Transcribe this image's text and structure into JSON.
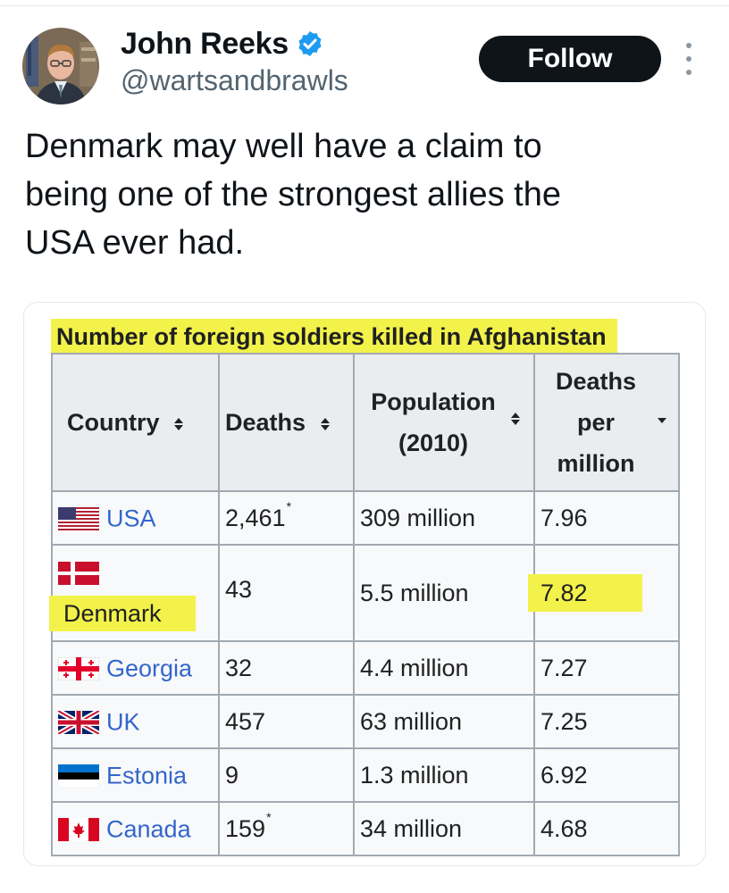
{
  "tweet": {
    "author": {
      "display_name": "John Reeks",
      "handle": "@wartsandbrawls",
      "verified": true
    },
    "follow_label": "Follow",
    "text": "Denmark may well have a claim to\nbeing one of the strongest allies the\nUSA ever had."
  },
  "table": {
    "caption": "Number of foreign soldiers killed in Afghanistan",
    "headers": {
      "country": "Country",
      "deaths": "Deaths",
      "population_line1": "Population",
      "population_line2": "(2010)",
      "dpm_line1": "Deaths",
      "dpm_line2": "per",
      "dpm_line3": "million"
    },
    "rows": [
      {
        "country": "USA",
        "flag": "usa-flag",
        "deaths": "2,461",
        "note": "*",
        "population": "309 million",
        "per_million": "7.96"
      },
      {
        "country": "Denmark",
        "flag": "denmark-flag",
        "deaths": "43",
        "note": "",
        "population": "5.5 million",
        "per_million": "7.82"
      },
      {
        "country": "Georgia",
        "flag": "georgia-flag",
        "deaths": "32",
        "note": "",
        "population": "4.4 million",
        "per_million": "7.27"
      },
      {
        "country": "UK",
        "flag": "uk-flag",
        "deaths": "457",
        "note": "",
        "population": "63 million",
        "per_million": "7.25"
      },
      {
        "country": "Estonia",
        "flag": "estonia-flag",
        "deaths": "9",
        "note": "",
        "population": "1.3 million",
        "per_million": "6.92"
      },
      {
        "country": "Canada",
        "flag": "canada-flag",
        "deaths": "159",
        "note": "*",
        "population": "34 million",
        "per_million": "4.68"
      }
    ],
    "highlight_color": "#f2f24a",
    "link_color": "#3366cc"
  }
}
